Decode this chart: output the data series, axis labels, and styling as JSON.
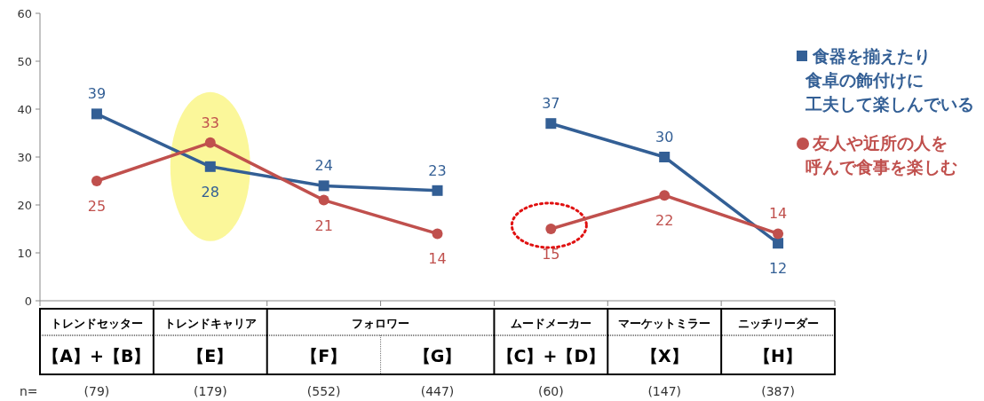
{
  "chart_data": {
    "type": "line",
    "categories": [
      "【A】+【B】",
      "【E】",
      "【F】",
      "【G】",
      "【C】+【D】",
      "【X】",
      "【H】"
    ],
    "series": [
      {
        "name": "食器を揃えたり食卓の飾付けに工夫して楽しんでいる",
        "color": "#335f95",
        "marker": "square",
        "values": [
          39,
          28,
          24,
          23,
          null,
          null,
          null
        ]
      },
      {
        "color": "#335f95",
        "marker": "square",
        "values": [
          null,
          null,
          null,
          null,
          37,
          30,
          12
        ]
      },
      {
        "name": "友人や近所の人を呼んで食事を楽しむ",
        "color": "#c0504d",
        "marker": "circle",
        "values": [
          25,
          33,
          21,
          14,
          null,
          null,
          null
        ]
      },
      {
        "color": "#c0504d",
        "marker": "circle",
        "values": [
          null,
          null,
          null,
          null,
          15,
          22,
          14
        ]
      }
    ],
    "ylim": [
      0,
      60
    ],
    "yticks": [
      0,
      10,
      20,
      30,
      40,
      50,
      60
    ],
    "data_labels": true,
    "legend": "right",
    "annotations": [
      "トレンドセッター",
      "トレンドキャリア",
      "フォロワー",
      "ムードメーカー",
      "マーケットミラー",
      "ニッチリーダー",
      "n=",
      "(79)",
      "(179)",
      "(552)",
      "(447)",
      "(60)",
      "(147)",
      "(387)"
    ]
  }
}
